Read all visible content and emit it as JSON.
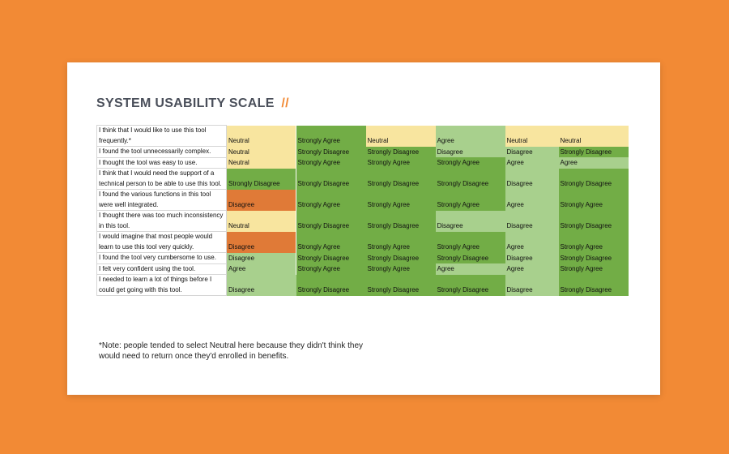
{
  "header": {
    "title": "SYSTEM USABILITY SCALE",
    "title_accent": "//"
  },
  "colors": {
    "background": "#f28a35",
    "strongly_agree": "#72ad46",
    "agree": "#a8d08d",
    "neutral": "#f8e59f",
    "disagree_orange": "#e07a37",
    "strongly_disagree": "#72ad46",
    "disagree": "#a8d08d"
  },
  "table": {
    "rows": [
      {
        "question": "I think that I would like to use this tool frequently.*",
        "responses": [
          "Neutral",
          "Strongly Agree",
          "Neutral",
          "Agree",
          "Neutral",
          "Neutral"
        ],
        "tones": [
          "n",
          "sa",
          "n",
          "a",
          "n",
          "n"
        ]
      },
      {
        "question": "I found the tool unnecessarily complex.",
        "responses": [
          "Neutral",
          "Strongly Disagree",
          "Strongly Disagree",
          "Disagree",
          "Disagree",
          "Strongly Disagree"
        ],
        "tones": [
          "n",
          "sd",
          "sd",
          "dg",
          "dg",
          "sd"
        ]
      },
      {
        "question": "I thought the tool was easy to use.",
        "responses": [
          "Neutral",
          "Strongly Agree",
          "Strongly Agree",
          "Strongly Agree",
          "Agree",
          "Agree"
        ],
        "tones": [
          "n",
          "sa",
          "sa",
          "sa",
          "a",
          "a"
        ]
      },
      {
        "question": "I think that I would need the support of a technical person to be able to use this tool.",
        "responses": [
          "Strongly Disagree",
          "Strongly Disagree",
          "Strongly Disagree",
          "Strongly Disagree",
          "Disagree",
          "Strongly Disagree"
        ],
        "tones": [
          "sd",
          "sd",
          "sd",
          "sd",
          "dg",
          "sd"
        ]
      },
      {
        "question": "I found the various functions in this tool were well integrated.",
        "responses": [
          "Disagree",
          "Strongly Agree",
          "Strongly Agree",
          "Strongly Agree",
          "Agree",
          "Strongly Agree"
        ],
        "tones": [
          "d",
          "sa",
          "sa",
          "sa",
          "a",
          "sa"
        ]
      },
      {
        "question": "I thought there was too much inconsistency in this tool.",
        "responses": [
          "Neutral",
          "Strongly Disagree",
          "Strongly Disagree",
          "Disagree",
          "Disagree",
          "Strongly Disagree"
        ],
        "tones": [
          "n",
          "sd",
          "sd",
          "dg",
          "dg",
          "sd"
        ]
      },
      {
        "question": "I would imagine that most people would learn to use this tool very quickly.",
        "responses": [
          "Disagree",
          "Strongly Agree",
          "Strongly Agree",
          "Strongly Agree",
          "Agree",
          "Strongly Agree"
        ],
        "tones": [
          "d",
          "sa",
          "sa",
          "sa",
          "a",
          "sa"
        ]
      },
      {
        "question": "I found the tool very cumbersome to use.",
        "responses": [
          "Disagree",
          "Strongly Disagree",
          "Strongly Disagree",
          "Strongly Disagree",
          "Disagree",
          "Strongly Disagree"
        ],
        "tones": [
          "dg",
          "sd",
          "sd",
          "sd",
          "dg",
          "sd"
        ]
      },
      {
        "question": "I felt very confident using the tool.",
        "responses": [
          "Agree",
          "Strongly Agree",
          "Strongly Agree",
          "Agree",
          "Agree",
          "Strongly Agree"
        ],
        "tones": [
          "a",
          "sa",
          "sa",
          "a",
          "a",
          "sa"
        ]
      },
      {
        "question": "I needed to learn a lot of things before I could get going with this tool.",
        "responses": [
          "Disagree",
          "Strongly Disagree",
          "Strongly Disagree",
          "Strongly Disagree",
          "Disagree",
          "Strongly Disagree"
        ],
        "tones": [
          "dg",
          "sd",
          "sd",
          "sd",
          "dg",
          "sd"
        ]
      }
    ]
  },
  "note": {
    "line1": "*Note: people tended to select Neutral here because they didn't think they",
    "line2": "would need to return once they'd enrolled in benefits."
  }
}
